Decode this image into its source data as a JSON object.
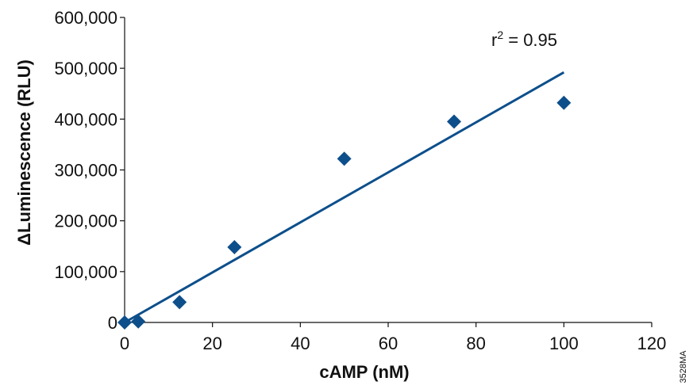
{
  "chart_data": {
    "type": "scatter",
    "title": "",
    "xlabel": "cAMP (nM)",
    "ylabel": "ΔLuminescence (RLU)",
    "xlim": [
      0,
      120
    ],
    "ylim": [
      0,
      600000
    ],
    "x_ticks": [
      0,
      20,
      40,
      60,
      80,
      100,
      120
    ],
    "y_ticks": [
      0,
      100000,
      200000,
      300000,
      400000,
      500000,
      600000
    ],
    "x_tick_labels": [
      "0",
      "20",
      "40",
      "60",
      "80",
      "100",
      "120"
    ],
    "y_tick_labels": [
      "0",
      "100,000",
      "200,000",
      "300,000",
      "400,000",
      "500,000",
      "600,000"
    ],
    "grid": false,
    "series": [
      {
        "marker": "diamond",
        "color": "#0d4f8b",
        "x": [
          0,
          3.1,
          12.5,
          25,
          50,
          75,
          100
        ],
        "y": [
          0,
          2000,
          40000,
          148000,
          322000,
          395000,
          432000
        ]
      }
    ],
    "fit_line": {
      "color": "#0d4f8b",
      "x": [
        0,
        100
      ],
      "y": [
        0,
        492000
      ]
    },
    "annotations": [
      {
        "text_base": "r",
        "text_sup": "2",
        "text_rest": " = 0.95"
      }
    ],
    "figure_code": "3528MA"
  }
}
